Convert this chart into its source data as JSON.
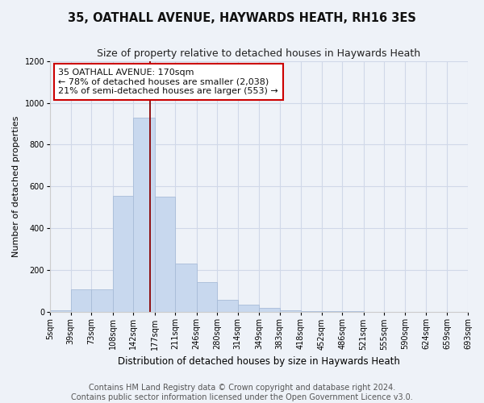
{
  "title_line1": "35, OATHALL AVENUE, HAYWARDS HEATH, RH16 3ES",
  "title_line2": "Size of property relative to detached houses in Haywards Heath",
  "xlabel": "Distribution of detached houses by size in Haywards Heath",
  "ylabel": "Number of detached properties",
  "bar_color": "#c8d8ee",
  "bar_edge_color": "#a8bcd8",
  "bin_labels": [
    "5sqm",
    "39sqm",
    "73sqm",
    "108sqm",
    "142sqm",
    "177sqm",
    "211sqm",
    "246sqm",
    "280sqm",
    "314sqm",
    "349sqm",
    "383sqm",
    "418sqm",
    "452sqm",
    "486sqm",
    "521sqm",
    "555sqm",
    "590sqm",
    "624sqm",
    "659sqm",
    "693sqm"
  ],
  "bar_heights": [
    10,
    110,
    110,
    555,
    930,
    550,
    230,
    145,
    60,
    35,
    20,
    10,
    5,
    5,
    3,
    2,
    1,
    1,
    0,
    0
  ],
  "ylim": [
    0,
    1200
  ],
  "yticks": [
    0,
    200,
    400,
    600,
    800,
    1000,
    1200
  ],
  "vline_x": 170,
  "annotation_text": "35 OATHALL AVENUE: 170sqm\n← 78% of detached houses are smaller (2,038)\n21% of semi-detached houses are larger (553) →",
  "footer_text": "Contains HM Land Registry data © Crown copyright and database right 2024.\nContains public sector information licensed under the Open Government Licence v3.0.",
  "grid_color": "#d0d8e8",
  "bg_color": "#eef2f8",
  "title_fontsize": 10.5,
  "subtitle_fontsize": 9,
  "tick_fontsize": 7,
  "ylabel_fontsize": 8,
  "xlabel_fontsize": 8.5,
  "annotation_fontsize": 8,
  "footer_fontsize": 7
}
